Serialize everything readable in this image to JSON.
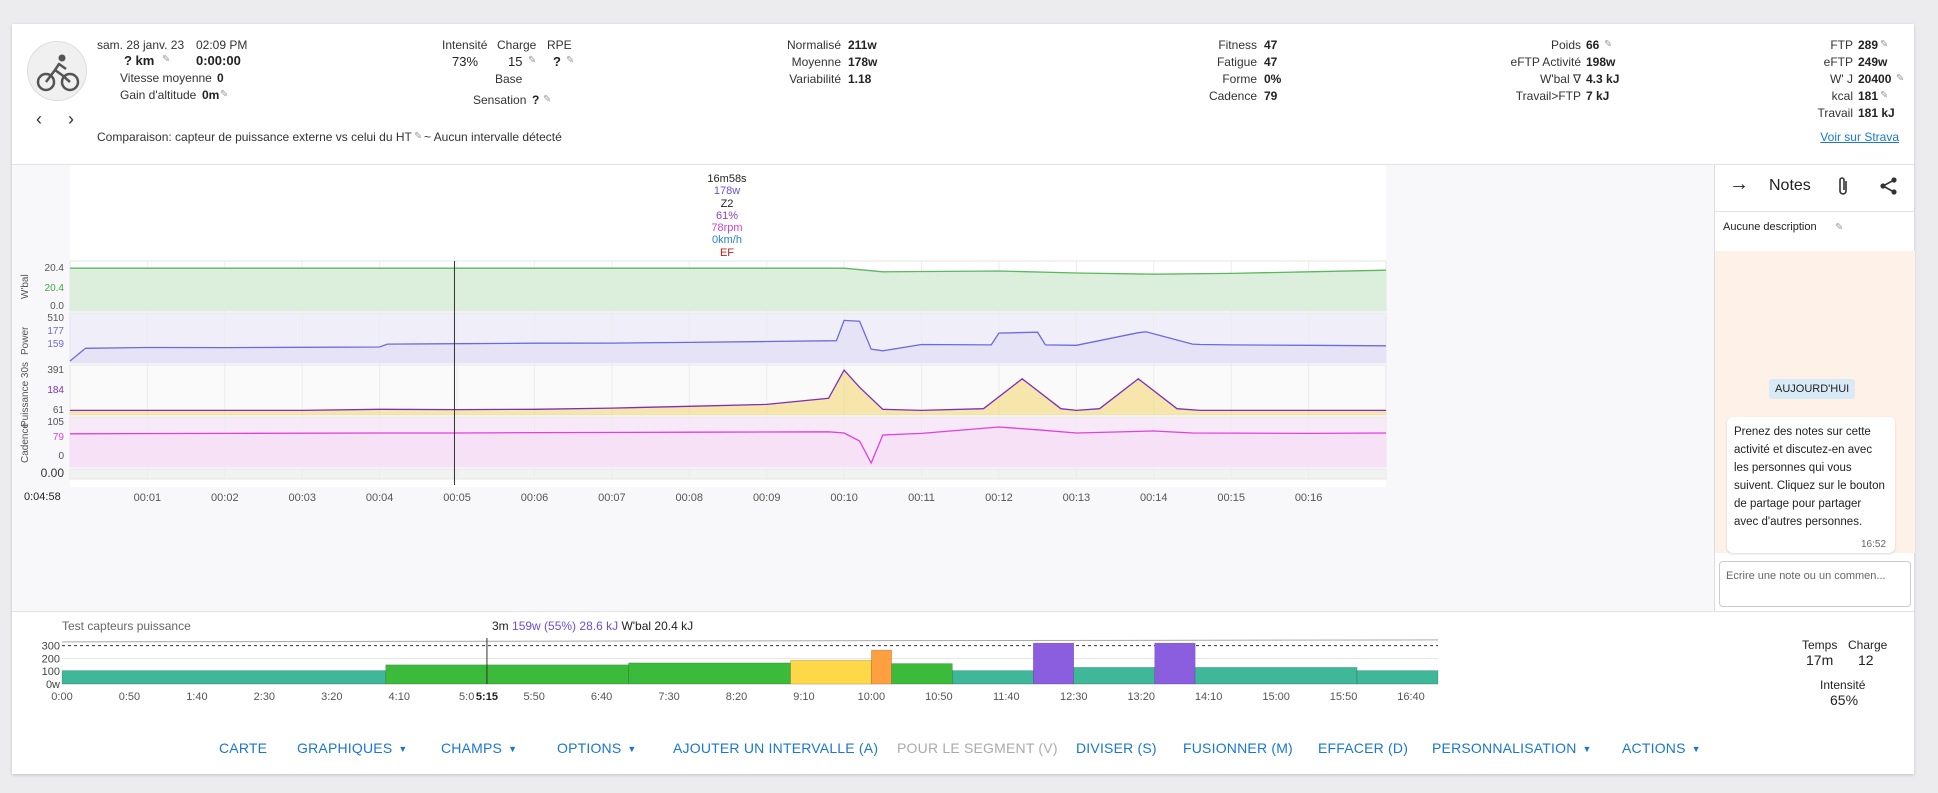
{
  "activity": {
    "date": "sam. 28 janv. 23",
    "time": "02:09 PM",
    "distance": "? km",
    "duration": "0:00:00",
    "avg_speed_label": "Vitesse moyenne",
    "avg_speed": "0",
    "elevation_label": "Gain d'altitude",
    "elevation": "0m",
    "comparison": "Comparaison: capteur de puissance externe vs celui du HT",
    "intervals_note": "~ Aucun intervalle détecté"
  },
  "stats": {
    "intensity_label": "Intensité",
    "intensity": "73%",
    "load_label": "Charge",
    "load": "15",
    "rpe_label": "RPE",
    "rpe": "?",
    "base_label": "Base",
    "feel_label": "Sensation",
    "feel": "?",
    "normalized_label": "Normalisé",
    "normalized": "211w",
    "average_label": "Moyenne",
    "average": "178w",
    "variability_label": "Variabilité",
    "variability": "1.18",
    "fitness_label": "Fitness",
    "fitness": "47",
    "fatigue_label": "Fatigue",
    "fatigue": "47",
    "form_label": "Forme",
    "form": "0%",
    "cadence_label": "Cadence",
    "cadence": "79",
    "weight_label": "Poids",
    "weight": "66",
    "eftp_act_label": "eFTP Activité",
    "eftp_act": "198w",
    "wbal_label": "W'bal ∇",
    "wbal": "4.3 kJ",
    "work_ftp_label": "Travail>FTP",
    "work_ftp": "7 kJ",
    "ftp_label": "FTP",
    "ftp": "289",
    "eftp_label": "eFTP",
    "eftp": "249w",
    "wprime_label": "W' J",
    "wprime": "20400",
    "kcal_label": "kcal",
    "kcal": "181",
    "work_label": "Travail",
    "work": "181 kJ",
    "strava_link": "Voir sur Strava"
  },
  "tooltip": {
    "time": "16m58s",
    "watts": "178w",
    "zone": "Z2",
    "pct": "61%",
    "rpm": "78rpm",
    "speed": "0km/h",
    "ef": "EF"
  },
  "chart_data": [
    {
      "type": "line",
      "title": "",
      "cursor_time": "0:04:58",
      "x_ticks": [
        "00:01",
        "00:02",
        "00:03",
        "00:04",
        "00:05",
        "00:06",
        "00:07",
        "00:08",
        "00:09",
        "00:10",
        "00:11",
        "00:12",
        "00:13",
        "00:14",
        "00:15",
        "00:16"
      ],
      "panels": [
        {
          "name": "W'bal",
          "ticks": [
            "20.4",
            "20.4",
            "0.0"
          ],
          "cursor_value": "20.4",
          "color": "#3cab3c"
        },
        {
          "name": "Power",
          "ticks": [
            "510",
            "177",
            "159"
          ],
          "color": "#6b6be0"
        },
        {
          "name": "Puissance 30s",
          "ticks": [
            "391",
            "184",
            "61"
          ],
          "color": "#7b2fbe"
        },
        {
          "name": "Cadence",
          "ticks": [
            "105",
            "79",
            "0"
          ],
          "color": "#e040e0"
        },
        {
          "name": "",
          "ticks": [
            "0.00"
          ]
        }
      ],
      "series": [
        {
          "name": "W'bal",
          "x": [
            0,
            4.99,
            5.0,
            10.0,
            10.5,
            12.0,
            13.0,
            14.0,
            15.0,
            16.0,
            17.0
          ],
          "values": [
            20.4,
            20.4,
            20.4,
            20.4,
            18.6,
            19.0,
            18.0,
            17.4,
            17.8,
            18.6,
            19.4
          ]
        },
        {
          "name": "Power",
          "x": [
            0,
            0.2,
            1,
            2,
            3,
            4,
            4.1,
            5,
            6,
            7,
            8,
            9,
            9.9,
            10,
            10.2,
            10.35,
            10.5,
            11,
            11.9,
            12,
            12.5,
            12.6,
            13,
            13.8,
            13.9,
            14.5,
            14.6,
            15,
            16,
            17
          ],
          "values": [
            0,
            150,
            160,
            158,
            162,
            165,
            200,
            205,
            210,
            212,
            220,
            230,
            240,
            480,
            470,
            140,
            120,
            195,
            190,
            330,
            340,
            190,
            185,
            335,
            345,
            200,
            195,
            190,
            185,
            180
          ]
        },
        {
          "name": "Puissance 30s",
          "x": [
            0,
            3,
            4,
            5,
            6,
            7,
            8,
            9,
            9.8,
            10.0,
            10.2,
            10.5,
            11,
            11.8,
            12.3,
            12.8,
            13,
            13.3,
            13.8,
            14.3,
            14.6,
            17
          ],
          "values": [
            61,
            61,
            70,
            68,
            70,
            80,
            95,
            110,
            160,
            391,
            250,
            70,
            61,
            75,
            320,
            75,
            61,
            75,
            320,
            75,
            61,
            61
          ]
        },
        {
          "name": "Cadence",
          "x": [
            0,
            2,
            4,
            5,
            6,
            8,
            9.8,
            10.0,
            10.2,
            10.35,
            10.5,
            11,
            12,
            12.5,
            13,
            14,
            14.5,
            16,
            17
          ],
          "values": [
            78,
            79,
            80,
            80,
            81,
            82,
            83,
            80,
            60,
            5,
            75,
            79,
            95,
            88,
            80,
            85,
            80,
            79,
            80
          ]
        }
      ]
    },
    {
      "type": "bar",
      "title": "Test capteurs puissance",
      "tooltip": {
        "duration": "3m",
        "power": "159w (55%)",
        "energy": "28.6 kJ",
        "wbal": "W'bal 20.4 kJ"
      },
      "cursor_label": "5:15",
      "y_ticks": [
        "300",
        "200",
        "100",
        "0w"
      ],
      "x_ticks": [
        "0:00",
        "0:50",
        "1:40",
        "2:30",
        "3:20",
        "4:10",
        "5:0",
        "5:50",
        "6:40",
        "7:30",
        "8:20",
        "9:10",
        "10:00",
        "10:50",
        "11:40",
        "12:30",
        "13:20",
        "14:10",
        "15:00",
        "15:50",
        "16:40"
      ],
      "segments": [
        {
          "start_s": 0,
          "end_s": 240,
          "watts": 105,
          "color": "#3fb89a"
        },
        {
          "start_s": 240,
          "end_s": 420,
          "watts": 150,
          "color": "#3cba3c"
        },
        {
          "start_s": 420,
          "end_s": 540,
          "watts": 165,
          "color": "#3cba3c"
        },
        {
          "start_s": 540,
          "end_s": 600,
          "watts": 185,
          "color": "#ffd84a"
        },
        {
          "start_s": 600,
          "end_s": 615,
          "watts": 265,
          "color": "#ffa040"
        },
        {
          "start_s": 615,
          "end_s": 660,
          "watts": 160,
          "color": "#3cba3c"
        },
        {
          "start_s": 660,
          "end_s": 720,
          "watts": 105,
          "color": "#3fb89a"
        },
        {
          "start_s": 720,
          "end_s": 750,
          "watts": 320,
          "color": "#8b5ee0"
        },
        {
          "start_s": 750,
          "end_s": 810,
          "watts": 130,
          "color": "#3fb89a"
        },
        {
          "start_s": 810,
          "end_s": 840,
          "watts": 320,
          "color": "#8b5ee0"
        },
        {
          "start_s": 840,
          "end_s": 960,
          "watts": 130,
          "color": "#3fb89a"
        },
        {
          "start_s": 960,
          "end_s": 1020,
          "watts": 105,
          "color": "#3fb89a"
        }
      ]
    }
  ],
  "summary": {
    "time_label": "Temps",
    "time": "17m",
    "load_label": "Charge",
    "load": "12",
    "intensity_label": "Intensité",
    "intensity": "65%"
  },
  "notes": {
    "title": "Notes",
    "description": "Aucune description",
    "today": "AUJOURD'HUI",
    "bubble": "Prenez des notes sur cette activité et discutez-en avec les personnes qui vous suivent. Cliquez sur le bouton de partage pour partager avec d'autres personnes.",
    "bubble_time": "16:52",
    "input_placeholder": "Ecrire une note ou un commen..."
  },
  "toolbar": {
    "map": "CARTE",
    "charts": "GRAPHIQUES",
    "fields": "CHAMPS",
    "options": "OPTIONS",
    "add_interval": "AJOUTER UN INTERVALLE (A)",
    "segment": "POUR LE SEGMENT (V)",
    "split": "DIVISER (S)",
    "merge": "FUSIONNER (M)",
    "delete": "EFFACER (D)",
    "customize": "PERSONNALISATION",
    "actions": "ACTIONS"
  },
  "icons": [
    "bike-icon",
    "chevron-left-icon",
    "chevron-right-icon",
    "arrow-right-icon",
    "paperclip-icon",
    "share-icon",
    "pencil-icon",
    "caret-down-icon"
  ]
}
